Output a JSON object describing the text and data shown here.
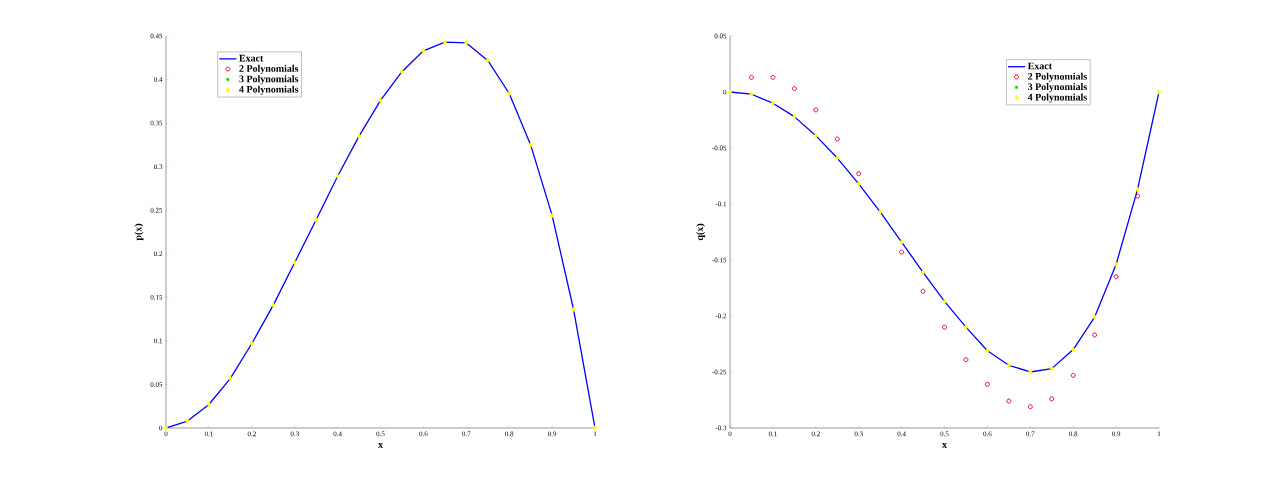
{
  "chart_data": [
    {
      "type": "line",
      "xlabel": "x",
      "ylabel": "p(x)",
      "x": [
        0,
        0.05,
        0.1,
        0.15,
        0.2,
        0.25,
        0.3,
        0.35,
        0.4,
        0.45,
        0.5,
        0.55,
        0.6,
        0.65,
        0.7,
        0.75,
        0.8,
        0.85,
        0.9,
        0.95,
        1
      ],
      "xlim": [
        0,
        1
      ],
      "ylim": [
        0,
        0.45
      ],
      "xticks": [
        0,
        0.1,
        0.2,
        0.3,
        0.4,
        0.5,
        0.6,
        0.7,
        0.8,
        0.9,
        1
      ],
      "yticks": [
        0,
        0.05,
        0.1,
        0.15,
        0.2,
        0.25,
        0.3,
        0.35,
        0.4,
        0.45
      ],
      "legend": "top left",
      "grid": false,
      "series": [
        {
          "name": "Exact",
          "marker": "none",
          "line_style": "solid",
          "color": "#0000ff",
          "values": [
            0,
            0.008,
            0.027,
            0.057,
            0.097,
            0.141,
            0.19,
            0.239,
            0.289,
            0.335,
            0.376,
            0.409,
            0.433,
            0.443,
            0.442,
            0.422,
            0.384,
            0.325,
            0.244,
            0.136,
            0
          ]
        },
        {
          "name": "2 Polynomials",
          "type": "scatter",
          "marker": "circle",
          "color": "#e0002a",
          "values": [
            null,
            null,
            null,
            null,
            null,
            null,
            null,
            null,
            null,
            null,
            null,
            null,
            null,
            null,
            null,
            null,
            null,
            null,
            null,
            null,
            null
          ]
        },
        {
          "name": "3 Polynomials",
          "type": "scatter",
          "marker": "square",
          "color": "#00dd00",
          "values": [
            null,
            null,
            null,
            null,
            null,
            null,
            null,
            null,
            null,
            null,
            null,
            null,
            null,
            null,
            null,
            null,
            null,
            null,
            null,
            null,
            null
          ]
        },
        {
          "name": "4 Polynomials",
          "type": "scatter",
          "marker": "diamond",
          "color": "#ffff00",
          "values": [
            0,
            0.008,
            0.027,
            0.057,
            0.097,
            0.141,
            0.19,
            0.239,
            0.289,
            0.335,
            0.376,
            0.409,
            0.433,
            0.443,
            0.442,
            0.422,
            0.384,
            0.325,
            0.244,
            0.136,
            0
          ]
        }
      ]
    },
    {
      "type": "line",
      "xlabel": "x",
      "ylabel": "q(x)",
      "x": [
        0,
        0.05,
        0.1,
        0.15,
        0.2,
        0.25,
        0.3,
        0.35,
        0.4,
        0.45,
        0.5,
        0.55,
        0.6,
        0.65,
        0.7,
        0.75,
        0.8,
        0.85,
        0.9,
        0.95,
        1
      ],
      "xlim": [
        0,
        1
      ],
      "ylim": [
        -0.3,
        0.05
      ],
      "xticks": [
        0,
        0.1,
        0.2,
        0.3,
        0.4,
        0.5,
        0.6,
        0.7,
        0.8,
        0.9,
        1
      ],
      "yticks": [
        -0.3,
        -0.25,
        -0.2,
        -0.15,
        -0.1,
        -0.05,
        0,
        0.05
      ],
      "legend": "top right",
      "grid": false,
      "series": [
        {
          "name": "Exact",
          "marker": "none",
          "line_style": "solid",
          "color": "#0000ff",
          "values": [
            0,
            -0.002,
            -0.01,
            -0.022,
            -0.039,
            -0.059,
            -0.082,
            -0.107,
            -0.134,
            -0.161,
            -0.187,
            -0.21,
            -0.231,
            -0.244,
            -0.25,
            -0.247,
            -0.23,
            -0.201,
            -0.154,
            -0.087,
            0
          ]
        },
        {
          "name": "2 Polynomials",
          "type": "scatter",
          "marker": "circle",
          "color": "#e0002a",
          "values": [
            null,
            0.013,
            0.013,
            0.003,
            -0.016,
            -0.042,
            -0.073,
            null,
            -0.143,
            -0.178,
            -0.21,
            -0.239,
            -0.261,
            -0.276,
            -0.281,
            -0.274,
            -0.253,
            -0.217,
            -0.165,
            -0.093,
            null
          ]
        },
        {
          "name": "3 Polynomials",
          "type": "scatter",
          "marker": "square",
          "color": "#00dd00",
          "values": [
            null,
            null,
            null,
            null,
            null,
            null,
            null,
            null,
            null,
            null,
            null,
            null,
            null,
            null,
            null,
            null,
            null,
            null,
            null,
            null,
            null
          ]
        },
        {
          "name": "4 Polynomials",
          "type": "scatter",
          "marker": "diamond",
          "color": "#ffff00",
          "values": [
            0,
            -0.002,
            -0.01,
            -0.022,
            -0.039,
            -0.059,
            -0.082,
            -0.107,
            -0.134,
            -0.161,
            -0.187,
            -0.21,
            -0.231,
            -0.244,
            -0.25,
            -0.247,
            -0.23,
            -0.201,
            -0.154,
            -0.087,
            0
          ]
        }
      ]
    }
  ]
}
